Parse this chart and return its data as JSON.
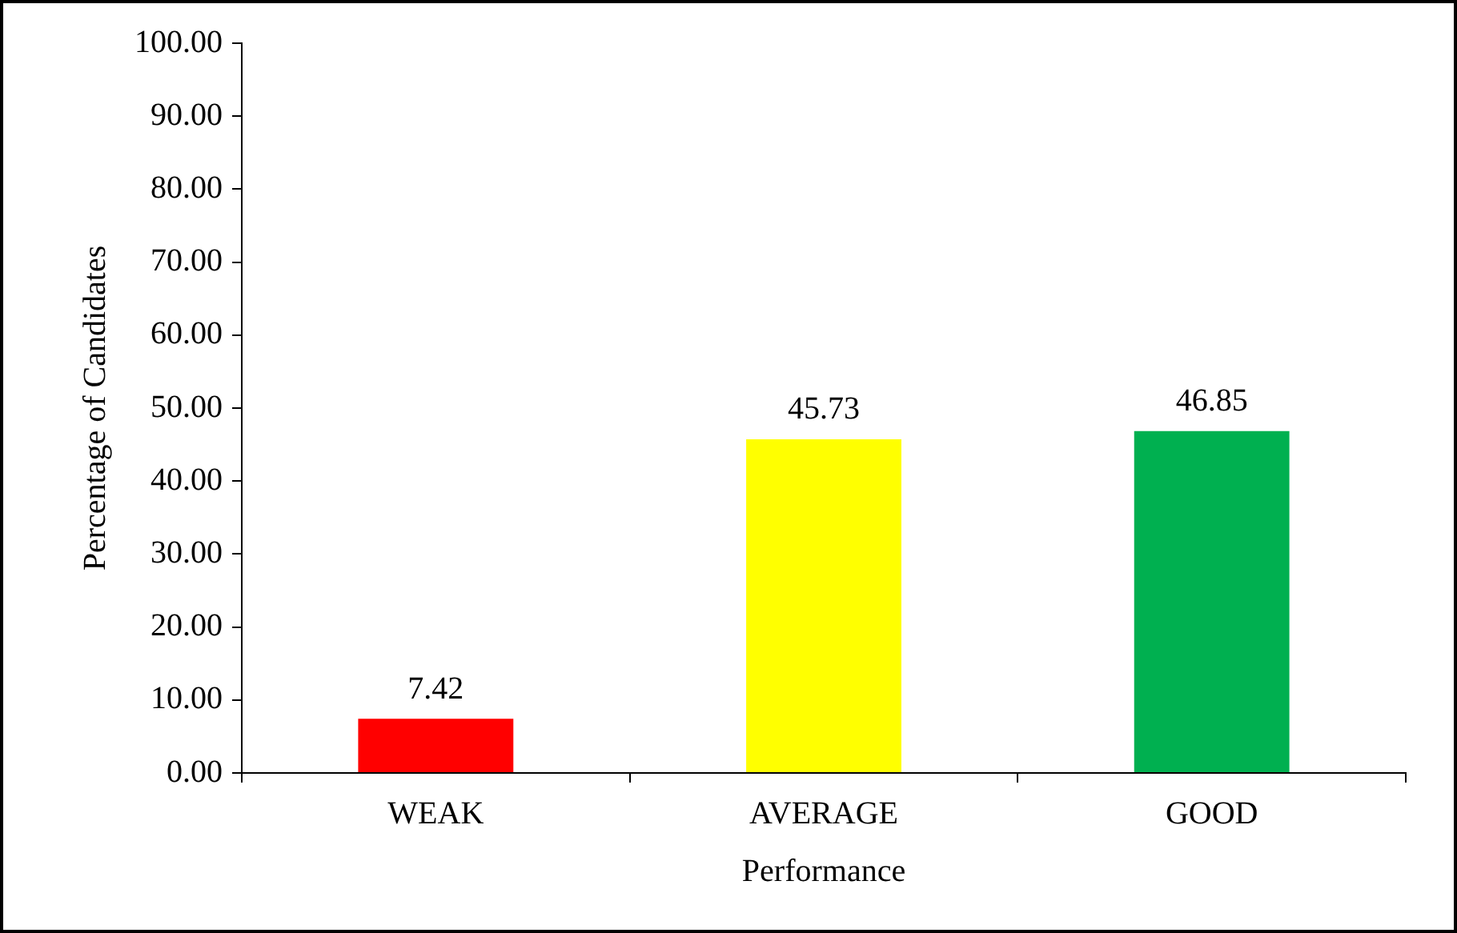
{
  "chart_data": {
    "type": "bar",
    "xlabel": "Performance",
    "ylabel": "Percentage of Candidates",
    "categories": [
      "WEAK",
      "AVERAGE",
      "GOOD"
    ],
    "values": [
      7.42,
      45.73,
      46.85
    ],
    "colors": [
      "#ff0000",
      "#ffff00",
      "#00b050"
    ],
    "ylim": [
      0,
      100
    ],
    "yticks": [
      {
        "value": 0,
        "label": "0.00"
      },
      {
        "value": 10,
        "label": "10.00"
      },
      {
        "value": 20,
        "label": "20.00"
      },
      {
        "value": 30,
        "label": "30.00"
      },
      {
        "value": 40,
        "label": "40.00"
      },
      {
        "value": 50,
        "label": "50.00"
      },
      {
        "value": 60,
        "label": "60.00"
      },
      {
        "value": 70,
        "label": "70.00"
      },
      {
        "value": 80,
        "label": "80.00"
      },
      {
        "value": 90,
        "label": "90.00"
      },
      {
        "value": 100,
        "label": "100.00"
      }
    ],
    "data_labels": true,
    "grid": false,
    "legend": false
  }
}
